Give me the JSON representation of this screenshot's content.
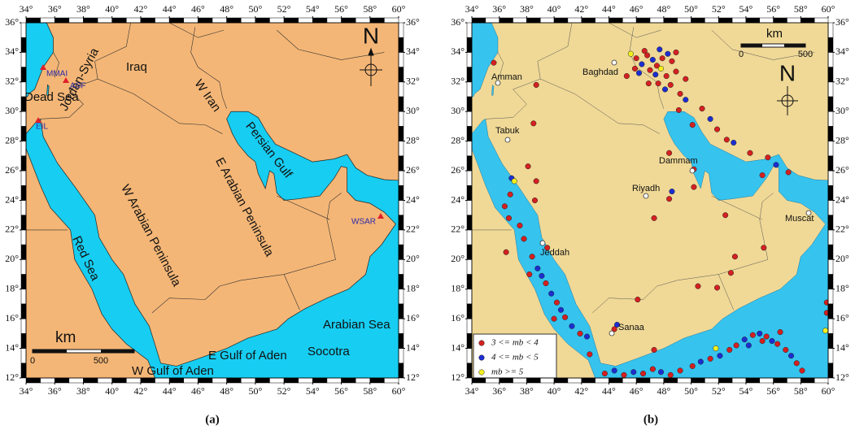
{
  "axes": {
    "lon_ticks": [
      {
        "value": 34,
        "label": "34°"
      },
      {
        "value": 36,
        "label": "36°"
      },
      {
        "value": 38,
        "label": "38°"
      },
      {
        "value": 40,
        "label": "40°"
      },
      {
        "value": 42,
        "label": "42°"
      },
      {
        "value": 44,
        "label": "44°"
      },
      {
        "value": 46,
        "label": "46°"
      },
      {
        "value": 48,
        "label": "48°"
      },
      {
        "value": 50,
        "label": "50°"
      },
      {
        "value": 52,
        "label": "52°"
      },
      {
        "value": 54,
        "label": "54°"
      },
      {
        "value": 56,
        "label": "56°"
      },
      {
        "value": 58,
        "label": "58°"
      },
      {
        "value": 60,
        "label": "60°"
      }
    ],
    "lat_ticks": [
      {
        "value": 12,
        "label": "12°"
      },
      {
        "value": 14,
        "label": "14°"
      },
      {
        "value": 16,
        "label": "16°"
      },
      {
        "value": 18,
        "label": "18°"
      },
      {
        "value": 20,
        "label": "20°"
      },
      {
        "value": 22,
        "label": "22°"
      },
      {
        "value": 24,
        "label": "24°"
      },
      {
        "value": 26,
        "label": "26°"
      },
      {
        "value": 28,
        "label": "28°"
      },
      {
        "value": 30,
        "label": "30°"
      },
      {
        "value": 32,
        "label": "32°"
      },
      {
        "value": 34,
        "label": "34°"
      },
      {
        "value": 36,
        "label": "36°"
      }
    ]
  },
  "panel_a": {
    "caption": "(a)",
    "north": "N",
    "scale": {
      "unit": "km",
      "min": 0,
      "max": 500
    },
    "labels": {
      "iraq": "Iraq",
      "w_iran": "W Iran",
      "jordan_syria": "Jordan-Syria",
      "dead_sea": "Dead Sea",
      "persian_gulf": "Persian Gulf",
      "e_arabian": "E Arabian Peninsula",
      "w_arabian": "W Arabian Peninsula",
      "red_sea": "Red Sea",
      "arabian_sea": "Arabian Sea",
      "socotra": "Socotra",
      "e_gulf_aden": "E Gulf of Aden",
      "w_gulf_aden": "W Gulf of Aden"
    },
    "stations": [
      "MMAI",
      "ASF",
      "EIL",
      "WSAR"
    ]
  },
  "panel_b": {
    "caption": "(b)",
    "north": "N",
    "scale": {
      "unit": "km",
      "min": 0,
      "max": 500
    },
    "cities": [
      "Amman",
      "Baghdad",
      "Tabuk",
      "Dammam",
      "Riyadh",
      "Muscat",
      "Jeddah",
      "Sanaa"
    ],
    "legend": [
      {
        "label": "3 <= mb < 4",
        "color": "#d42020"
      },
      {
        "label": "4 <= mb < 5",
        "color": "#1c2ed0"
      },
      {
        "label": "mb >= 5",
        "color": "#f4f020"
      }
    ],
    "events": [
      [
        45.6,
        33.9,
        2
      ],
      [
        46,
        33.6,
        0
      ],
      [
        46.4,
        33.2,
        1
      ],
      [
        46.8,
        33.8,
        0
      ],
      [
        47.2,
        33.5,
        1
      ],
      [
        47.5,
        33.1,
        0
      ],
      [
        47.9,
        33.6,
        0
      ],
      [
        48.3,
        33.9,
        1
      ],
      [
        48.6,
        33.4,
        0
      ],
      [
        47,
        32.8,
        0
      ],
      [
        47.4,
        32.5,
        1
      ],
      [
        47.8,
        32.9,
        2
      ],
      [
        48.2,
        32.4,
        0
      ],
      [
        46.2,
        32.6,
        1
      ],
      [
        45.9,
        32.9,
        0
      ],
      [
        48.9,
        32.7,
        0
      ],
      [
        48.5,
        31.8,
        0
      ],
      [
        48.1,
        31.5,
        1
      ],
      [
        47.6,
        31.9,
        0
      ],
      [
        49.2,
        31.2,
        0
      ],
      [
        49.6,
        30.8,
        1
      ],
      [
        46.6,
        34.1,
        0
      ],
      [
        47.7,
        34.2,
        1
      ],
      [
        48.9,
        34,
        0
      ],
      [
        46.9,
        31.9,
        0
      ],
      [
        45.3,
        32.4,
        0
      ],
      [
        49.6,
        32.2,
        0
      ],
      [
        50.8,
        30.2,
        0
      ],
      [
        51.4,
        29.5,
        1
      ],
      [
        51.9,
        28.8,
        0
      ],
      [
        52.6,
        28.1,
        0
      ],
      [
        53.1,
        27.9,
        1
      ],
      [
        54.3,
        27.2,
        0
      ],
      [
        55.6,
        26.9,
        0
      ],
      [
        56.2,
        26.4,
        1
      ],
      [
        57.1,
        25.9,
        0
      ],
      [
        50.1,
        29.1,
        0
      ],
      [
        48.4,
        27.2,
        0
      ],
      [
        49.1,
        30.1,
        0
      ],
      [
        50.2,
        26.1,
        0
      ],
      [
        55.2,
        25.7,
        0
      ],
      [
        48.6,
        24.6,
        1
      ],
      [
        48.4,
        24.1,
        0
      ],
      [
        50.2,
        24.9,
        0
      ],
      [
        52.5,
        23,
        0
      ],
      [
        51.9,
        18.1,
        0
      ],
      [
        50.5,
        18.2,
        0
      ],
      [
        52.9,
        19.1,
        0
      ],
      [
        55.3,
        20.8,
        0
      ],
      [
        53.2,
        20.2,
        0
      ],
      [
        47.3,
        22.8,
        0
      ],
      [
        46.1,
        17.3,
        0
      ],
      [
        42.6,
        13.6,
        0
      ],
      [
        44.4,
        15.3,
        0
      ],
      [
        44.6,
        15.6,
        1
      ],
      [
        47.3,
        13.9,
        0
      ],
      [
        38.7,
        31.8,
        0
      ],
      [
        35.6,
        33.3,
        0
      ],
      [
        38.5,
        29.2,
        0
      ],
      [
        38.1,
        26.3,
        0
      ],
      [
        38.7,
        25.3,
        0
      ],
      [
        36.9,
        25.5,
        1
      ],
      [
        37.1,
        25.3,
        2
      ],
      [
        36.8,
        24.4,
        0
      ],
      [
        36.4,
        23.6,
        0
      ],
      [
        36.7,
        22.8,
        0
      ],
      [
        37.5,
        22.3,
        0
      ],
      [
        37.8,
        21.4,
        0
      ],
      [
        38.4,
        20.2,
        0
      ],
      [
        38.8,
        19.4,
        1
      ],
      [
        39.1,
        18.9,
        1
      ],
      [
        39.4,
        18.4,
        0
      ],
      [
        39.8,
        17.7,
        1
      ],
      [
        40.2,
        17.1,
        0
      ],
      [
        40.5,
        16.6,
        1
      ],
      [
        40.8,
        16.1,
        0
      ],
      [
        41.3,
        15.5,
        1
      ],
      [
        41.9,
        15,
        0
      ],
      [
        42.4,
        14.8,
        1
      ],
      [
        38.6,
        24,
        0
      ],
      [
        39.5,
        20.8,
        0
      ],
      [
        38.2,
        19,
        0
      ],
      [
        36.5,
        20.5,
        0
      ],
      [
        40,
        16,
        0
      ],
      [
        43.7,
        12.3,
        0
      ],
      [
        44.4,
        12.5,
        1
      ],
      [
        45.1,
        12.2,
        0
      ],
      [
        45.8,
        12.4,
        1
      ],
      [
        46.5,
        12.3,
        0
      ],
      [
        47.2,
        12.6,
        0
      ],
      [
        47.8,
        12.4,
        1
      ],
      [
        48.5,
        12.2,
        0
      ],
      [
        49.2,
        12.5,
        0
      ],
      [
        50.1,
        12.8,
        0
      ],
      [
        50.7,
        13.1,
        1
      ],
      [
        51.4,
        13.3,
        0
      ],
      [
        52.1,
        13.5,
        1
      ],
      [
        52.8,
        13.9,
        0
      ],
      [
        53.3,
        14.2,
        0
      ],
      [
        53.9,
        14.6,
        1
      ],
      [
        54.5,
        14.9,
        0
      ],
      [
        55,
        15,
        1
      ],
      [
        55.5,
        14.8,
        0
      ],
      [
        55.9,
        14.5,
        1
      ],
      [
        56.3,
        14.3,
        0
      ],
      [
        56.9,
        13.9,
        0
      ],
      [
        57.3,
        13.5,
        1
      ],
      [
        57.7,
        13,
        0
      ],
      [
        58.1,
        12.5,
        0
      ],
      [
        54.2,
        14.2,
        1
      ],
      [
        55.2,
        14.5,
        0
      ],
      [
        56.5,
        15.1,
        0
      ],
      [
        59.9,
        16.4,
        0
      ],
      [
        59.8,
        15.2,
        2
      ],
      [
        59.9,
        17.1,
        0
      ],
      [
        51.8,
        14,
        2
      ]
    ]
  }
}
